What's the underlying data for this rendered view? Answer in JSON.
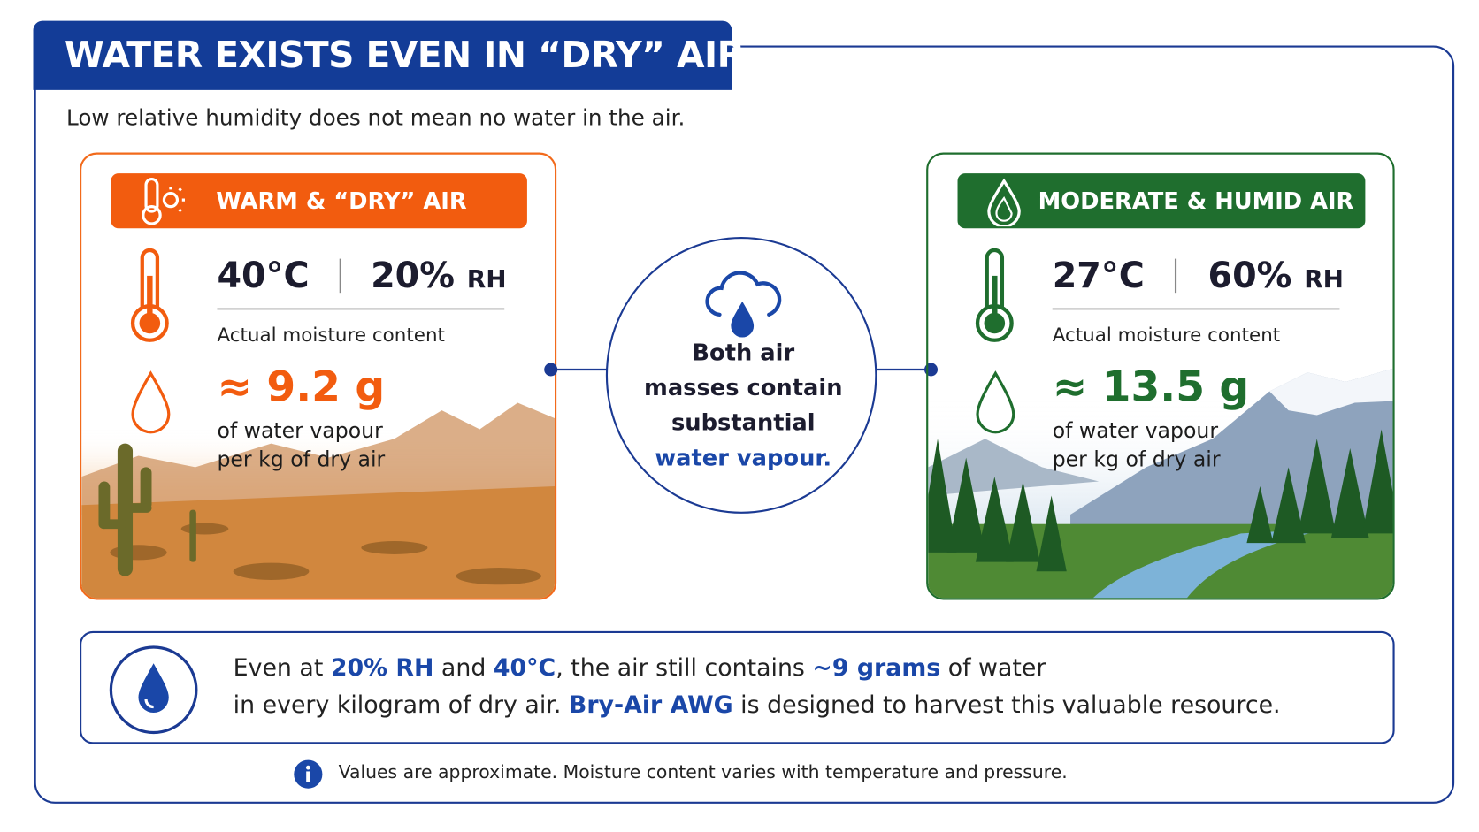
{
  "header": {
    "title": "WATER EXISTS EVEN IN “DRY” AIR",
    "subtitle": "Low relative humidity does not mean no water in the air."
  },
  "panels": [
    {
      "title": "WARM & “DRY” AIR",
      "temperature": "40°C",
      "humidity": "20%",
      "humidity_unit": "RH",
      "moisture_label": "Actual moisture content",
      "approx": "≈",
      "amount": "9.2 g",
      "caption_lines": [
        "of water vapour",
        "per kg of dry air"
      ]
    },
    {
      "title": "MODERATE & HUMID AIR",
      "temperature": "27°C",
      "humidity": "60%",
      "humidity_unit": "RH",
      "moisture_label": "Actual moisture content",
      "approx": "≈",
      "amount": "13.5 g",
      "caption_lines": [
        "of water vapour",
        "per kg of dry air"
      ]
    }
  ],
  "center": {
    "lines": [
      "Both air",
      "masses contain",
      "substantial"
    ],
    "highlight": "water vapour."
  },
  "summary": {
    "line1": [
      "Even at ",
      "20% RH",
      " and ",
      "40°C",
      ", the air still contains ",
      "~9 grams",
      " of water"
    ],
    "line2": [
      "in every kilogram of dry air. ",
      "Bry-Air AWG",
      " is designed to harvest this valuable resource."
    ]
  },
  "note": "Values are approximate. Moisture content varies with temperature and pressure."
}
